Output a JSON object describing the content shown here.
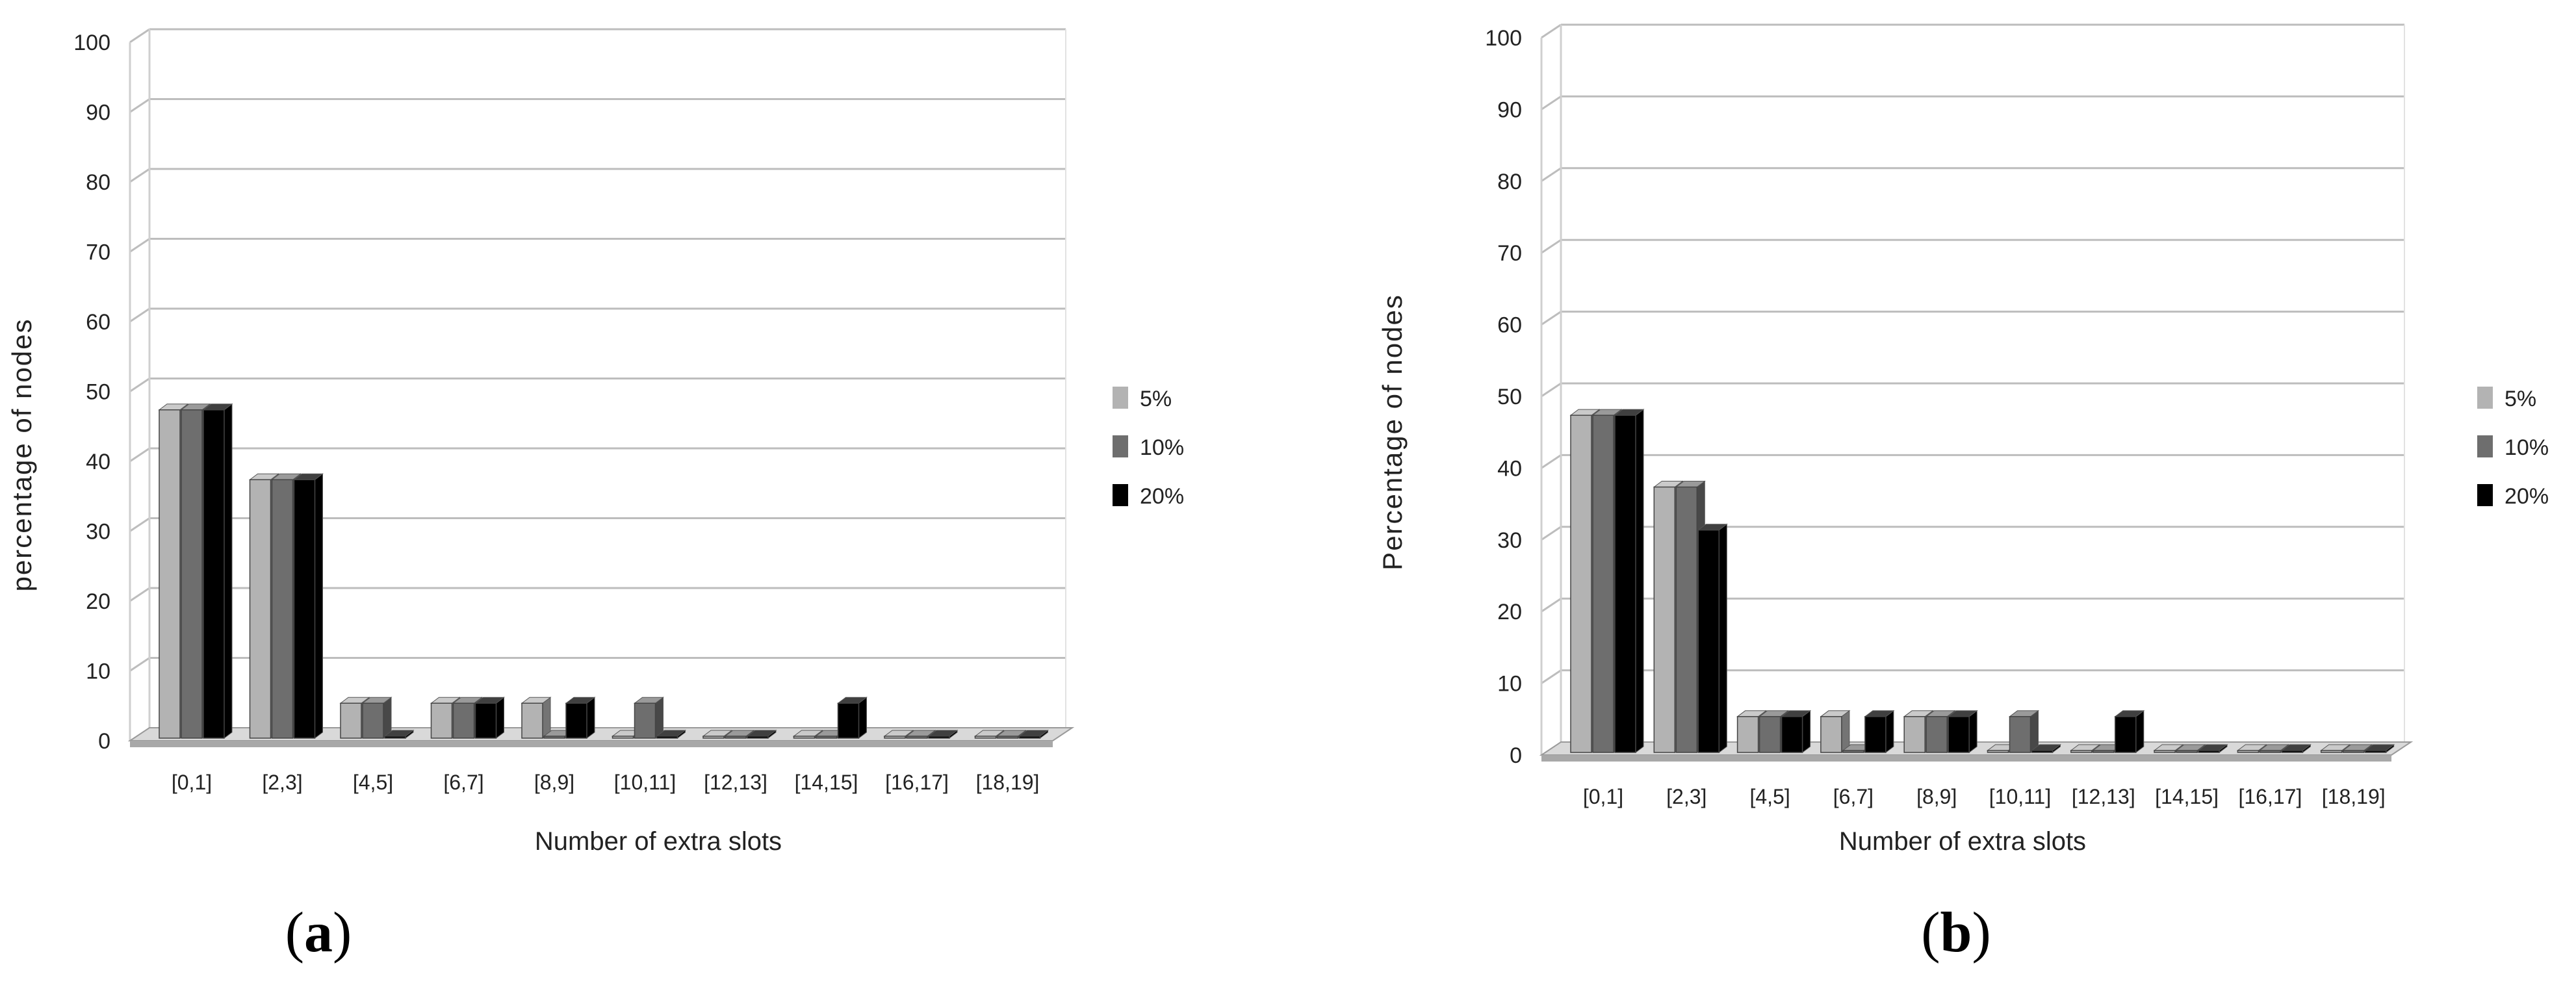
{
  "chart_data": [
    {
      "type": "bar",
      "panel_label": "a",
      "title": "",
      "xlabel": "Number of extra slots",
      "ylabel": "percentage of nodes",
      "ylim": [
        0,
        100
      ],
      "yticks": [
        0,
        10,
        20,
        30,
        40,
        50,
        60,
        70,
        80,
        90,
        100
      ],
      "grid": true,
      "legend": "right",
      "categories": [
        "[0,1]",
        "[2,3]",
        "[4,5]",
        "[6,7]",
        "[8,9]",
        "[10,11]",
        "[12,13]",
        "[14,15]",
        "[16,17]",
        "[18,19]"
      ],
      "series": [
        {
          "name": "5%",
          "color": "#b3b3b3",
          "values": [
            47,
            37,
            5,
            5,
            5,
            0,
            0,
            0,
            0,
            0
          ]
        },
        {
          "name": "10%",
          "color": "#6e6e6e",
          "values": [
            47,
            37,
            5,
            5,
            0,
            5,
            0,
            0,
            0,
            0
          ]
        },
        {
          "name": "20%",
          "color": "#000000",
          "values": [
            47,
            37,
            0,
            5,
            5,
            0,
            0,
            5,
            0,
            0
          ]
        }
      ]
    },
    {
      "type": "bar",
      "panel_label": "b",
      "title": "",
      "xlabel": "Number of extra slots",
      "ylabel": "Percentage of nodes",
      "ylim": [
        0,
        100
      ],
      "yticks": [
        0,
        10,
        20,
        30,
        40,
        50,
        60,
        70,
        80,
        90,
        100
      ],
      "grid": true,
      "legend": "right",
      "categories": [
        "[0,1]",
        "[2,3]",
        "[4,5]",
        "[6,7]",
        "[8,9]",
        "[10,11]",
        "[12,13]",
        "[14,15]",
        "[16,17]",
        "[18,19]"
      ],
      "series": [
        {
          "name": "5%",
          "color": "#b3b3b3",
          "values": [
            47,
            37,
            5,
            5,
            5,
            0,
            0,
            0,
            0,
            0
          ]
        },
        {
          "name": "10%",
          "color": "#6e6e6e",
          "values": [
            47,
            37,
            5,
            0,
            5,
            5,
            0,
            0,
            0,
            0
          ]
        },
        {
          "name": "20%",
          "color": "#000000",
          "values": [
            47,
            31,
            5,
            5,
            5,
            0,
            5,
            0,
            0,
            0
          ]
        }
      ]
    }
  ]
}
